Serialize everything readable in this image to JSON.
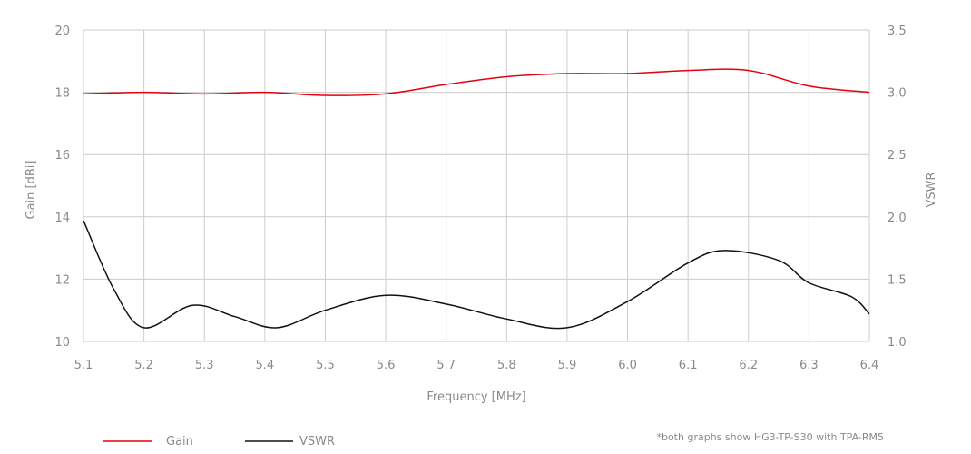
{
  "chart_data": {
    "type": "line",
    "xlabel": "Frequency [MHz]",
    "x_ticks": [
      "5.1",
      "5.2",
      "5.3",
      "5.4",
      "5.5",
      "5.6",
      "5.7",
      "5.8",
      "5.9",
      "6.0",
      "6.1",
      "6.2",
      "6.3",
      "6.4"
    ],
    "xlim": [
      5.1,
      6.4
    ],
    "y_left": {
      "label": "Gain [dBi]",
      "lim": [
        10,
        20
      ],
      "ticks": [
        "10",
        "12",
        "14",
        "16",
        "18",
        "20"
      ]
    },
    "y_right": {
      "label": "VSWR",
      "lim": [
        1.0,
        3.5
      ],
      "ticks": [
        "1.0",
        "1.5",
        "2.0",
        "2.5",
        "3.0",
        "3.5"
      ]
    },
    "grid": true,
    "legend_position": "bottom-left",
    "series": [
      {
        "name": "Gain",
        "axis": "left",
        "color": "#e3000f",
        "x": [
          5.1,
          5.2,
          5.3,
          5.4,
          5.5,
          5.6,
          5.7,
          5.8,
          5.9,
          6.0,
          6.1,
          6.2,
          6.3,
          6.4
        ],
        "values": [
          17.95,
          18.0,
          17.95,
          18.0,
          17.9,
          17.95,
          18.25,
          18.5,
          18.6,
          18.6,
          18.7,
          18.7,
          18.2,
          18.0
        ]
      },
      {
        "name": "VSWR",
        "axis": "right",
        "color": "#111111",
        "x": [
          5.1,
          5.15,
          5.2,
          5.28,
          5.35,
          5.42,
          5.5,
          5.6,
          5.7,
          5.8,
          5.9,
          6.0,
          6.1,
          6.16,
          6.25,
          6.3,
          6.37,
          6.4
        ],
        "values": [
          1.97,
          1.42,
          1.11,
          1.29,
          1.2,
          1.11,
          1.25,
          1.37,
          1.3,
          1.18,
          1.11,
          1.32,
          1.63,
          1.73,
          1.65,
          1.47,
          1.36,
          1.22
        ]
      }
    ],
    "note": "*both graphs show HG3-TP-S30 with TPA-RM5"
  }
}
